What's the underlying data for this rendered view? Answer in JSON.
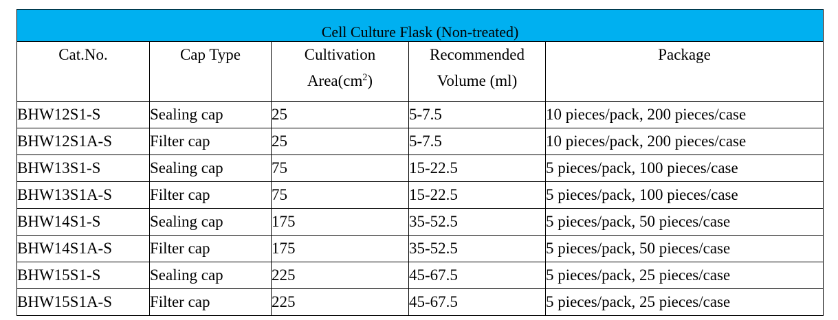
{
  "title": "Cell Culture Flask (Non-treated)",
  "headers": {
    "cat_no": "Cat.No.",
    "cap_type": "Cap Type",
    "area_line1": "Cultivation",
    "area_line2": "Area(cm",
    "area_sup": "2",
    "area_close": ")",
    "volume_line1": "Recommended",
    "volume_line2": "Volume (ml)",
    "package": "Package"
  },
  "rows": [
    {
      "cat_no": "BHW12S1-S",
      "cap_type": "Sealing cap",
      "area": "25",
      "volume": "5-7.5",
      "package": "10 pieces/pack, 200 pieces/case"
    },
    {
      "cat_no": "BHW12S1A-S",
      "cap_type": "Filter cap",
      "area": "25",
      "volume": "5-7.5",
      "package": "10 pieces/pack, 200 pieces/case"
    },
    {
      "cat_no": "BHW13S1-S",
      "cap_type": "Sealing cap",
      "area": "75",
      "volume": "15-22.5",
      "package": "5 pieces/pack, 100 pieces/case"
    },
    {
      "cat_no": "BHW13S1A-S",
      "cap_type": "Filter cap",
      "area": "75",
      "volume": "15-22.5",
      "package": "5 pieces/pack, 100 pieces/case"
    },
    {
      "cat_no": "BHW14S1-S",
      "cap_type": "Sealing cap",
      "area": "175",
      "volume": "35-52.5",
      "package": "5 pieces/pack, 50 pieces/case"
    },
    {
      "cat_no": "BHW14S1A-S",
      "cap_type": "Filter cap",
      "area": "175",
      "volume": "35-52.5",
      "package": "5 pieces/pack, 50 pieces/case"
    },
    {
      "cat_no": "BHW15S1-S",
      "cap_type": "Sealing cap",
      "area": "225",
      "volume": "45-67.5",
      "package": "5 pieces/pack, 25 pieces/case"
    },
    {
      "cat_no": "BHW15S1A-S",
      "cap_type": "Filter cap",
      "area": "225",
      "volume": "45-67.5",
      "package": "5 pieces/pack, 25 pieces/case"
    }
  ],
  "colors": {
    "title_background": "#00b0f0",
    "border": "#000000"
  }
}
